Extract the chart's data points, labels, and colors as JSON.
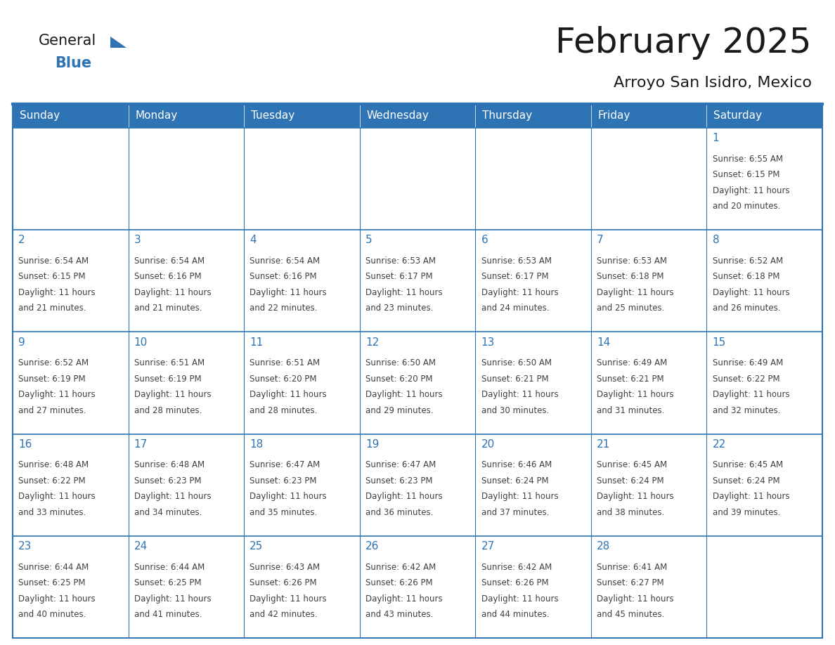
{
  "title": "February 2025",
  "subtitle": "Arroyo San Isidro, Mexico",
  "header_bg_color": "#2E74B5",
  "header_text_color": "#FFFFFF",
  "border_color": "#2E74B5",
  "text_color": "#404040",
  "day_number_color": "#2E74B5",
  "days_of_week": [
    "Sunday",
    "Monday",
    "Tuesday",
    "Wednesday",
    "Thursday",
    "Friday",
    "Saturday"
  ],
  "calendar_data": [
    [
      null,
      null,
      null,
      null,
      null,
      null,
      {
        "day": "1",
        "sunrise": "6:55 AM",
        "sunset": "6:15 PM",
        "daylight_min": "20"
      }
    ],
    [
      {
        "day": "2",
        "sunrise": "6:54 AM",
        "sunset": "6:15 PM",
        "daylight_min": "21"
      },
      {
        "day": "3",
        "sunrise": "6:54 AM",
        "sunset": "6:16 PM",
        "daylight_min": "21"
      },
      {
        "day": "4",
        "sunrise": "6:54 AM",
        "sunset": "6:16 PM",
        "daylight_min": "22"
      },
      {
        "day": "5",
        "sunrise": "6:53 AM",
        "sunset": "6:17 PM",
        "daylight_min": "23"
      },
      {
        "day": "6",
        "sunrise": "6:53 AM",
        "sunset": "6:17 PM",
        "daylight_min": "24"
      },
      {
        "day": "7",
        "sunrise": "6:53 AM",
        "sunset": "6:18 PM",
        "daylight_min": "25"
      },
      {
        "day": "8",
        "sunrise": "6:52 AM",
        "sunset": "6:18 PM",
        "daylight_min": "26"
      }
    ],
    [
      {
        "day": "9",
        "sunrise": "6:52 AM",
        "sunset": "6:19 PM",
        "daylight_min": "27"
      },
      {
        "day": "10",
        "sunrise": "6:51 AM",
        "sunset": "6:19 PM",
        "daylight_min": "28"
      },
      {
        "day": "11",
        "sunrise": "6:51 AM",
        "sunset": "6:20 PM",
        "daylight_min": "28"
      },
      {
        "day": "12",
        "sunrise": "6:50 AM",
        "sunset": "6:20 PM",
        "daylight_min": "29"
      },
      {
        "day": "13",
        "sunrise": "6:50 AM",
        "sunset": "6:21 PM",
        "daylight_min": "30"
      },
      {
        "day": "14",
        "sunrise": "6:49 AM",
        "sunset": "6:21 PM",
        "daylight_min": "31"
      },
      {
        "day": "15",
        "sunrise": "6:49 AM",
        "sunset": "6:22 PM",
        "daylight_min": "32"
      }
    ],
    [
      {
        "day": "16",
        "sunrise": "6:48 AM",
        "sunset": "6:22 PM",
        "daylight_min": "33"
      },
      {
        "day": "17",
        "sunrise": "6:48 AM",
        "sunset": "6:23 PM",
        "daylight_min": "34"
      },
      {
        "day": "18",
        "sunrise": "6:47 AM",
        "sunset": "6:23 PM",
        "daylight_min": "35"
      },
      {
        "day": "19",
        "sunrise": "6:47 AM",
        "sunset": "6:23 PM",
        "daylight_min": "36"
      },
      {
        "day": "20",
        "sunrise": "6:46 AM",
        "sunset": "6:24 PM",
        "daylight_min": "37"
      },
      {
        "day": "21",
        "sunrise": "6:45 AM",
        "sunset": "6:24 PM",
        "daylight_min": "38"
      },
      {
        "day": "22",
        "sunrise": "6:45 AM",
        "sunset": "6:24 PM",
        "daylight_min": "39"
      }
    ],
    [
      {
        "day": "23",
        "sunrise": "6:44 AM",
        "sunset": "6:25 PM",
        "daylight_min": "40"
      },
      {
        "day": "24",
        "sunrise": "6:44 AM",
        "sunset": "6:25 PM",
        "daylight_min": "41"
      },
      {
        "day": "25",
        "sunrise": "6:43 AM",
        "sunset": "6:26 PM",
        "daylight_min": "42"
      },
      {
        "day": "26",
        "sunrise": "6:42 AM",
        "sunset": "6:26 PM",
        "daylight_min": "43"
      },
      {
        "day": "27",
        "sunrise": "6:42 AM",
        "sunset": "6:26 PM",
        "daylight_min": "44"
      },
      {
        "day": "28",
        "sunrise": "6:41 AM",
        "sunset": "6:27 PM",
        "daylight_min": "45"
      },
      null
    ]
  ],
  "logo_color_general": "#1A1A1A",
  "logo_color_blue": "#2E74B5",
  "logo_triangle_color": "#2E74B5",
  "title_fontsize": 36,
  "subtitle_fontsize": 16,
  "header_fontsize": 11,
  "day_num_fontsize": 11,
  "cell_text_fontsize": 8.5
}
